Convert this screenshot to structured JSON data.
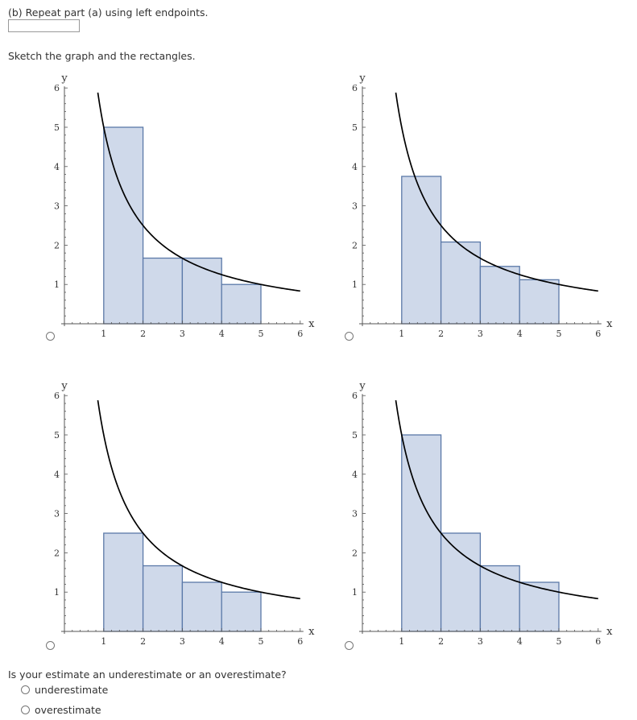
{
  "header": {
    "part_label": "(b) Repeat part (a) using left endpoints.",
    "sketch_instruction": "Sketch the graph and the rectangles."
  },
  "answer_input": {
    "value": ""
  },
  "graph_axes": {
    "x_label": "x",
    "y_label": "y",
    "x_ticks": [
      "1",
      "2",
      "3",
      "4",
      "5",
      "6"
    ],
    "y_ticks": [
      "1",
      "2",
      "3",
      "4",
      "5",
      "6"
    ]
  },
  "colors": {
    "rect_fill": "#cfd9ea",
    "rect_stroke": "#5b79a8",
    "curve": "#000000"
  },
  "chart_data": [
    {
      "type": "bar",
      "option": "top-left",
      "xlabel": "x",
      "ylabel": "y",
      "xlim": [
        0,
        6
      ],
      "ylim": [
        0,
        6
      ],
      "curve": "y = 5/x",
      "curve_x": [
        0.85,
        6
      ],
      "bins": [
        [
          1,
          2
        ],
        [
          2,
          3
        ],
        [
          3,
          4
        ],
        [
          4,
          5
        ]
      ],
      "values": [
        5,
        1.67,
        1.67,
        1
      ]
    },
    {
      "type": "bar",
      "option": "top-right",
      "xlabel": "x",
      "ylabel": "y",
      "xlim": [
        0,
        6
      ],
      "ylim": [
        0,
        6
      ],
      "curve": "y = 5/x",
      "curve_x": [
        0.85,
        6
      ],
      "bins": [
        [
          1,
          2
        ],
        [
          2,
          3
        ],
        [
          3,
          4
        ],
        [
          4,
          5
        ]
      ],
      "values": [
        3.75,
        2.08,
        1.46,
        1.12
      ]
    },
    {
      "type": "bar",
      "option": "bottom-left",
      "xlabel": "x",
      "ylabel": "y",
      "xlim": [
        0,
        6
      ],
      "ylim": [
        0,
        6
      ],
      "curve": "y = 5/x",
      "curve_x": [
        0.85,
        6
      ],
      "bins": [
        [
          1,
          2
        ],
        [
          2,
          3
        ],
        [
          3,
          4
        ],
        [
          4,
          5
        ]
      ],
      "values": [
        2.5,
        1.67,
        1.25,
        1
      ]
    },
    {
      "type": "bar",
      "option": "bottom-right",
      "xlabel": "x",
      "ylabel": "y",
      "xlim": [
        0,
        6
      ],
      "ylim": [
        0,
        6
      ],
      "curve": "y = 5/x",
      "curve_x": [
        0.85,
        6
      ],
      "bins": [
        [
          1,
          2
        ],
        [
          2,
          3
        ],
        [
          3,
          4
        ],
        [
          4,
          5
        ]
      ],
      "values": [
        5,
        2.5,
        1.67,
        1.25
      ]
    }
  ],
  "estimate_question": {
    "prompt": "Is your estimate an underestimate or an overestimate?",
    "options": [
      "underestimate",
      "overestimate"
    ]
  }
}
